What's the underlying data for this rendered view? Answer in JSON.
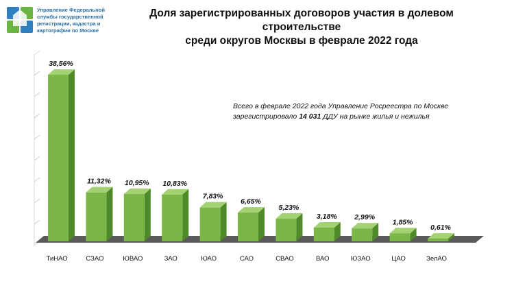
{
  "org": {
    "lines": [
      "Управление Федеральной",
      "службы государственной",
      "регистрации, кадастра и",
      "картографии по Москве"
    ]
  },
  "title": {
    "line1": "Доля зарегистрированных  договоров участия в долевом строительстве",
    "line2": "среди округов Москвы в феврале 2022 года"
  },
  "note": {
    "part1": "Всего в феврале 2022 года Управление Росреестра по Москве зарегистрировало ",
    "bold": "14 031",
    "part2": " ДДУ на рынке жилья и нежилья"
  },
  "colors": {
    "bar_front": "#7ab648",
    "bar_side": "#4e8a2a",
    "bar_top": "#a4d272",
    "floor": "#5a5a5a",
    "title": "#111111",
    "org": "#2a6fa8",
    "logo_blue": "#2f7fc1",
    "logo_green": "#6cb33f"
  },
  "chart_data": {
    "type": "bar",
    "categories": [
      "ТиНАО",
      "СЗАО",
      "ЮВАО",
      "ЗАО",
      "ЮАО",
      "САО",
      "СВАО",
      "ВАО",
      "ЮЗАО",
      "ЦАО",
      "ЗелАО"
    ],
    "values": [
      38.56,
      11.32,
      10.95,
      10.83,
      7.83,
      6.65,
      5.23,
      3.18,
      2.99,
      1.85,
      0.61
    ],
    "labels": [
      "38,56%",
      "11,32%",
      "10,95%",
      "10,83%",
      "7,83%",
      "6,65%",
      "5,23%",
      "3,18%",
      "2,99%",
      "1,85%",
      "0,61%"
    ],
    "ylim": [
      0,
      40
    ],
    "grid": false,
    "style": "3d"
  }
}
